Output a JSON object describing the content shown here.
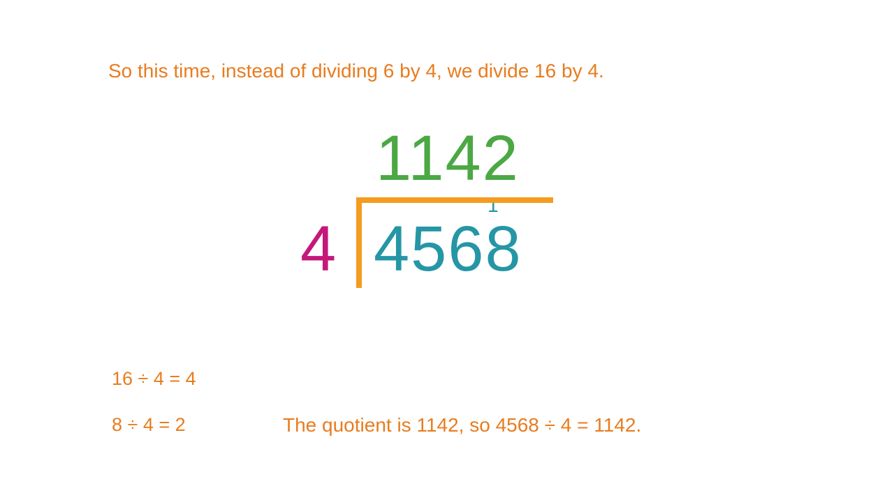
{
  "colors": {
    "orange": "#e87c1f",
    "green": "#4ba843",
    "magenta": "#c4187a",
    "teal": "#2596a5",
    "bracket": "#f39c1f"
  },
  "topText": "So this time, instead of dividing 6 by 4, we divide 16 by 4.",
  "division": {
    "quotient": "1142",
    "divisor": "4",
    "dividend": "4568",
    "carry": "1"
  },
  "calculations": {
    "line1": "16 ÷ 4 = 4",
    "line2": "8 ÷ 4 = 2"
  },
  "conclusion": "The quotient is 1142, so 4568 ÷ 4 = 1142."
}
